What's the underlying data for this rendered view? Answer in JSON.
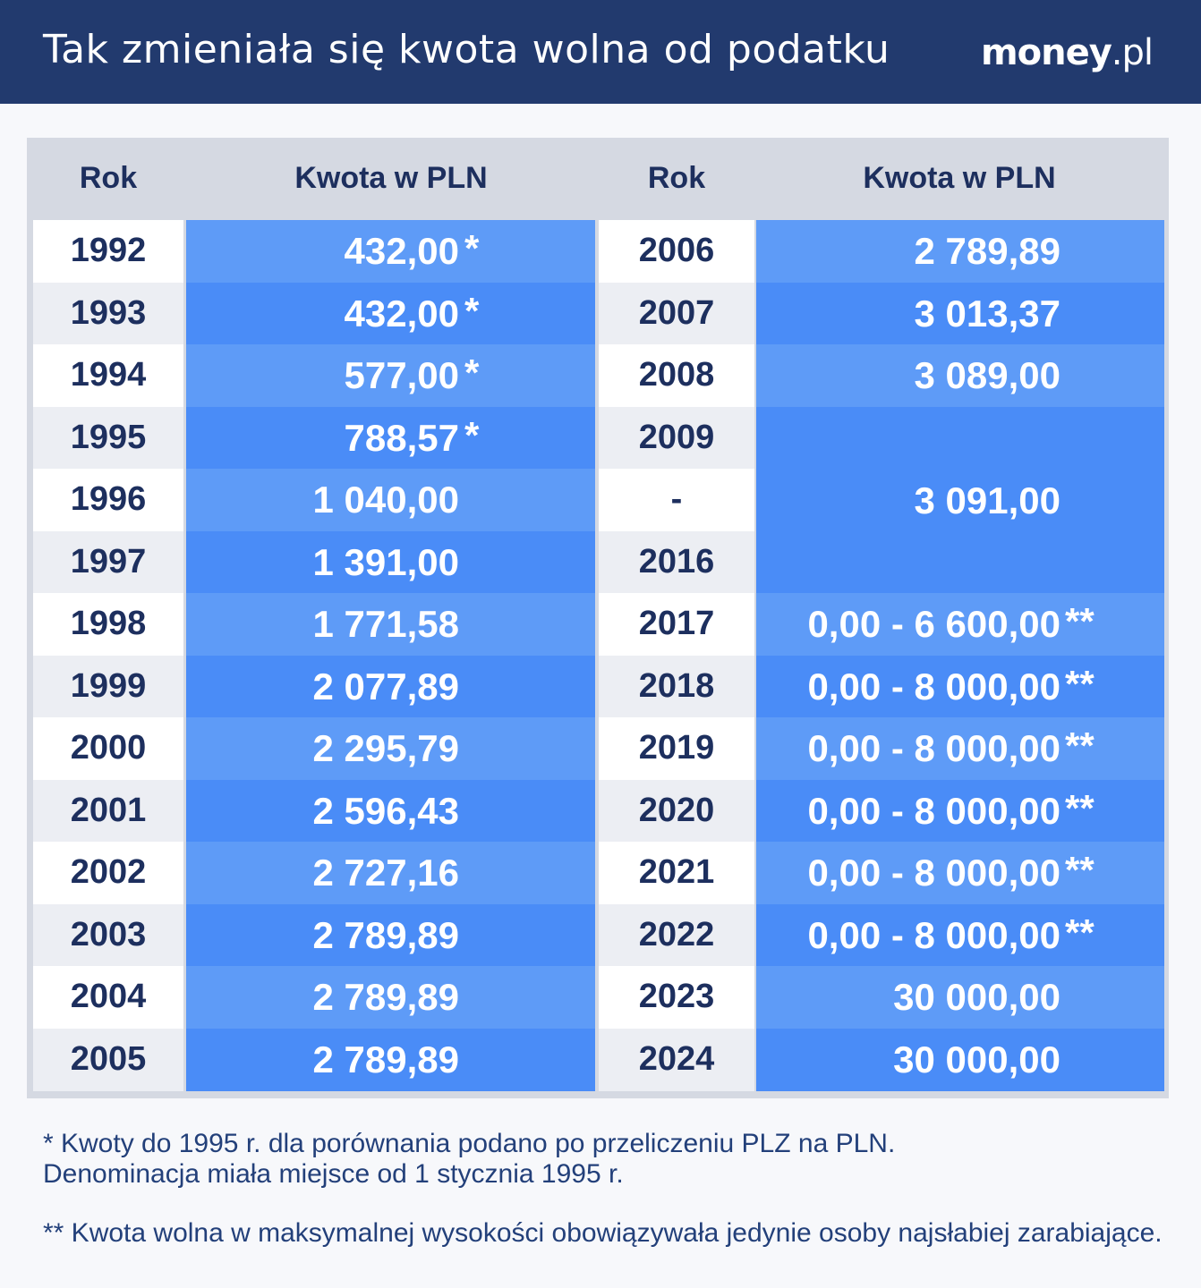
{
  "header": {
    "title": "Tak zmieniała się kwota wolna od podatku",
    "logo_main": "money",
    "logo_suffix": ".pl"
  },
  "colors": {
    "header_bg": "#223a6e",
    "year_light": "#ffffff",
    "year_dark": "#eceef3",
    "amount_light": "#5e9bf7",
    "amount_dark": "#4a8cf7",
    "text_dark": "#1d2f5e"
  },
  "table": {
    "headers": {
      "left_year": "Rok",
      "left_amount": "Kwota w PLN",
      "right_year": "Rok",
      "right_amount": "Kwota w PLN"
    },
    "left_rows": [
      {
        "year": "1992",
        "amount": "432,00",
        "mark": "*"
      },
      {
        "year": "1993",
        "amount": "432,00",
        "mark": "*"
      },
      {
        "year": "1994",
        "amount": "577,00",
        "mark": "*"
      },
      {
        "year": "1995",
        "amount": "788,57",
        "mark": "*"
      },
      {
        "year": "1996",
        "amount": "1 040,00",
        "mark": ""
      },
      {
        "year": "1997",
        "amount": "1 391,00",
        "mark": ""
      },
      {
        "year": "1998",
        "amount": "1 771,58",
        "mark": ""
      },
      {
        "year": "1999",
        "amount": "2 077,89",
        "mark": ""
      },
      {
        "year": "2000",
        "amount": "2 295,79",
        "mark": ""
      },
      {
        "year": "2001",
        "amount": "2 596,43",
        "mark": ""
      },
      {
        "year": "2002",
        "amount": "2 727,16",
        "mark": ""
      },
      {
        "year": "2003",
        "amount": "2 789,89",
        "mark": ""
      },
      {
        "year": "2004",
        "amount": "2 789,89",
        "mark": ""
      },
      {
        "year": "2005",
        "amount": "2 789,89",
        "mark": ""
      }
    ],
    "right_rows": [
      {
        "year": "2006",
        "amount": "2 789,89",
        "mark": ""
      },
      {
        "year": "2007",
        "amount": "3 013,37",
        "mark": ""
      },
      {
        "year": "2008",
        "amount": "3 089,00",
        "mark": ""
      },
      {
        "year": "2009",
        "amount": "3 091,00",
        "mark": ""
      },
      {
        "year": "-",
        "amount": "3 091,00",
        "mark": ""
      },
      {
        "year": "2016",
        "amount": "3 091,00",
        "mark": ""
      },
      {
        "year": "2017",
        "amount": "0,00 - 6 600,00",
        "mark": "**"
      },
      {
        "year": "2018",
        "amount": "0,00 - 8 000,00",
        "mark": "**"
      },
      {
        "year": "2019",
        "amount": "0,00 - 8 000,00",
        "mark": "**"
      },
      {
        "year": "2020",
        "amount": "0,00 - 8 000,00",
        "mark": "**"
      },
      {
        "year": "2021",
        "amount": "0,00 - 8 000,00",
        "mark": "**"
      },
      {
        "year": "2022",
        "amount": "0,00 - 8 000,00",
        "mark": "**"
      },
      {
        "year": "2023",
        "amount": "30 000,00",
        "mark": ""
      },
      {
        "year": "2024",
        "amount": "30 000,00",
        "mark": ""
      }
    ],
    "merged_span": {
      "first_index": 3,
      "last_index": 5,
      "amount": "3 091,00"
    }
  },
  "footnotes": {
    "note1_line1": "* Kwoty do 1995 r. dla porównania podano po przeliczeniu PLZ na PLN.",
    "note1_line2": "Denominacja miała miejsce od 1 stycznia 1995 r.",
    "note2": "** Kwota wolna w maksymalnej wysokości obowiązywała jedynie osoby najsłabiej zarabiające."
  }
}
